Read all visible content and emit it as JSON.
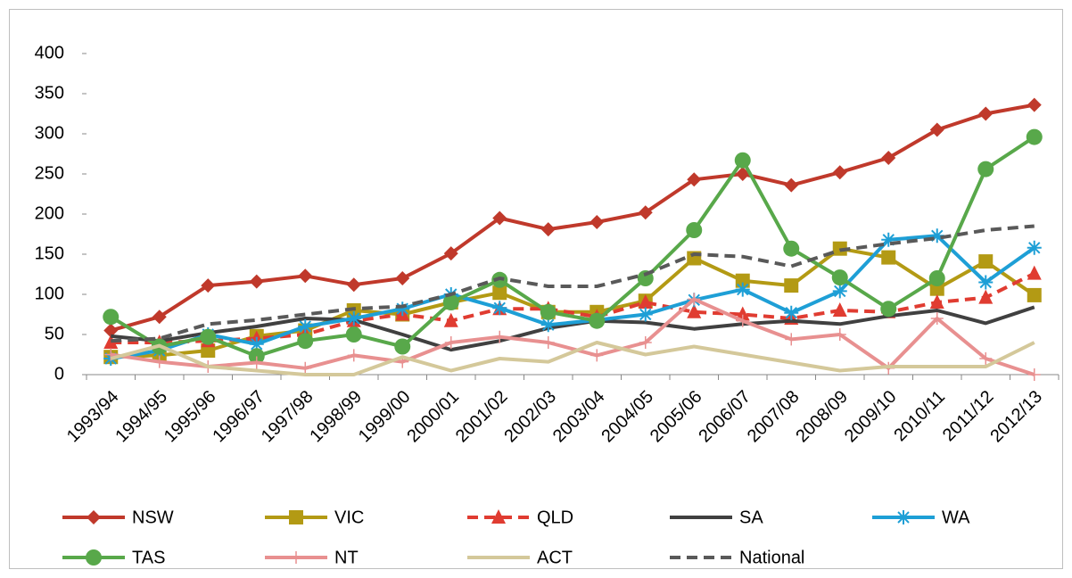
{
  "chart_data": {
    "type": "line",
    "categories": [
      "1993/94",
      "1994/95",
      "1995/96",
      "1996/97",
      "1997/98",
      "1998/99",
      "1999/00",
      "2000/01",
      "2001/02",
      "2002/03",
      "2003/04",
      "2004/05",
      "2005/06",
      "2006/07",
      "2007/08",
      "2008/09",
      "2009/10",
      "2010/11",
      "2011/12",
      "2012/13"
    ],
    "ylim": [
      0,
      400
    ],
    "yticks": [
      0,
      50,
      100,
      150,
      200,
      250,
      300,
      350,
      400
    ],
    "grid": false,
    "series": [
      {
        "name": "NSW",
        "color": "#c0392b",
        "marker": "diamond",
        "dashed": false,
        "values": [
          55,
          72,
          111,
          116,
          123,
          112,
          120,
          151,
          195,
          181,
          190,
          202,
          243,
          250,
          236,
          252,
          270,
          305,
          325,
          336
        ]
      },
      {
        "name": "VIC",
        "color": "#b39a14",
        "marker": "square",
        "dashed": false,
        "values": [
          22,
          24,
          30,
          48,
          55,
          80,
          75,
          90,
          102,
          78,
          78,
          92,
          145,
          117,
          111,
          157,
          146,
          107,
          141,
          99
        ]
      },
      {
        "name": "QLD",
        "color": "#e03c31",
        "marker": "triangle",
        "dashed": true,
        "values": [
          40,
          40,
          42,
          45,
          50,
          67,
          75,
          67,
          82,
          82,
          72,
          90,
          78,
          75,
          70,
          80,
          78,
          90,
          96,
          126
        ]
      },
      {
        "name": "SA",
        "color": "#404040",
        "marker": "none",
        "dashed": false,
        "values": [
          48,
          42,
          52,
          60,
          70,
          68,
          50,
          31,
          42,
          58,
          67,
          65,
          57,
          63,
          67,
          63,
          73,
          80,
          64,
          84
        ]
      },
      {
        "name": "WA",
        "color": "#1e9fd6",
        "marker": "asterisk",
        "dashed": false,
        "values": [
          20,
          30,
          50,
          38,
          60,
          70,
          82,
          100,
          83,
          62,
          68,
          75,
          93,
          106,
          77,
          104,
          168,
          173,
          115,
          158
        ]
      },
      {
        "name": "TAS",
        "color": "#58a84a",
        "marker": "circle",
        "dashed": false,
        "values": [
          72,
          35,
          47,
          23,
          42,
          50,
          35,
          90,
          118,
          78,
          67,
          120,
          180,
          267,
          157,
          121,
          82,
          120,
          256,
          296
        ]
      },
      {
        "name": "NT",
        "color": "#e89090",
        "marker": "plus",
        "dashed": false,
        "values": [
          25,
          16,
          10,
          15,
          8,
          24,
          16,
          40,
          47,
          40,
          24,
          40,
          94,
          67,
          44,
          50,
          8,
          70,
          20,
          0
        ]
      },
      {
        "name": "ACT",
        "color": "#d4c89a",
        "marker": "none",
        "dashed": false,
        "values": [
          20,
          36,
          10,
          5,
          0,
          0,
          22,
          5,
          20,
          16,
          40,
          25,
          35,
          25,
          15,
          5,
          10,
          10,
          10,
          40
        ]
      },
      {
        "name": "National",
        "color": "#595959",
        "marker": "none",
        "dashed": true,
        "values": [
          42,
          45,
          63,
          68,
          75,
          82,
          85,
          100,
          120,
          110,
          110,
          125,
          150,
          147,
          135,
          155,
          163,
          170,
          180,
          185
        ]
      }
    ]
  }
}
